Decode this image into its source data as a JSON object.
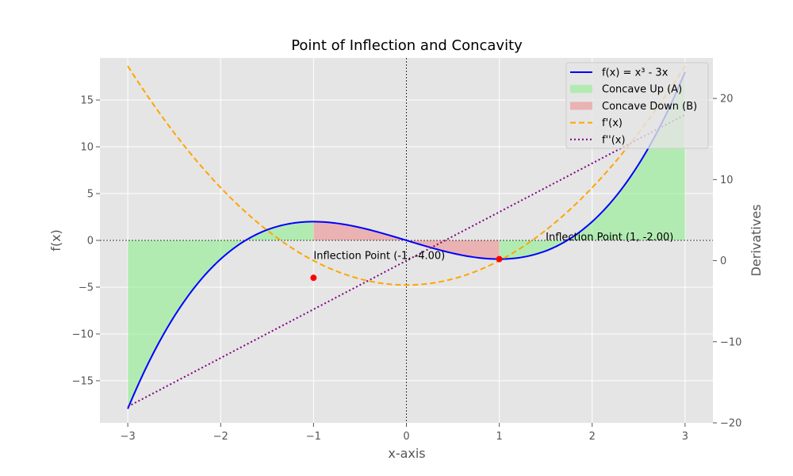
{
  "chart_data": {
    "type": "line",
    "title": "Point of Inflection and Concavity",
    "xlabel": "x-axis",
    "ylabel": "f(x)",
    "y2label": "Derivatives",
    "xlim": [
      -3.3,
      3.3
    ],
    "ylim": [
      -19.5,
      19.5
    ],
    "y2lim": [
      -20,
      25
    ],
    "xticks": [
      -3,
      -2,
      -1,
      0,
      1,
      2,
      3
    ],
    "xtick_labels": [
      "−3",
      "−2",
      "−1",
      "0",
      "1",
      "2",
      "3"
    ],
    "yticks": [
      -15,
      -10,
      -5,
      0,
      5,
      10,
      15
    ],
    "ytick_labels": [
      "−15",
      "−10",
      "−5",
      "0",
      "5",
      "10",
      "15"
    ],
    "y2ticks": [
      -20,
      -10,
      0,
      10,
      20
    ],
    "y2tick_labels": [
      "−20",
      "−10",
      "0",
      "10",
      "20"
    ],
    "grid": true,
    "legend_position": "top-right",
    "series": [
      {
        "name": "f(x) = x³ - 3x",
        "formula": "x^3 - 3x",
        "axis": "left",
        "color": "#0000ff",
        "style": "solid",
        "x_range": [
          -3,
          3
        ]
      },
      {
        "name": "f'(x)",
        "formula": "3x^2 - 3",
        "axis": "right",
        "color": "#ffa500",
        "style": "dashed",
        "x_range": [
          -3,
          3
        ]
      },
      {
        "name": "f''(x)",
        "formula": "6x",
        "axis": "right",
        "color": "#800080",
        "style": "dotted",
        "x_range": [
          -3,
          3
        ]
      }
    ],
    "fill_regions": [
      {
        "name": "Concave Up (A)",
        "color": "#90ee90",
        "opacity": 0.6,
        "x_ranges": [
          [
            -3,
            -1
          ],
          [
            1,
            3
          ]
        ]
      },
      {
        "name": "Concave Down (B)",
        "color": "#f08080",
        "opacity": 0.5,
        "x_ranges": [
          [
            -1,
            1
          ]
        ]
      }
    ],
    "points": [
      {
        "x": -1,
        "y": -4,
        "color": "#ff0000"
      },
      {
        "x": 1,
        "y": -2,
        "color": "#ff0000"
      }
    ],
    "annotations": [
      {
        "text": "Inflection Point (-1, -4.00)",
        "x": -1,
        "y": -2
      },
      {
        "text": "Inflection Point (1, -2.00)",
        "x": 1.5,
        "y": 0
      }
    ],
    "reference_lines": {
      "x": 0,
      "y": 0
    }
  }
}
